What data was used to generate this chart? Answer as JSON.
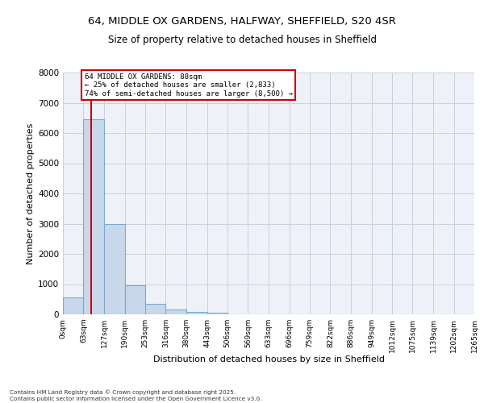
{
  "title_line1": "64, MIDDLE OX GARDENS, HALFWAY, SHEFFIELD, S20 4SR",
  "title_line2": "Size of property relative to detached houses in Sheffield",
  "xlabel": "Distribution of detached houses by size in Sheffield",
  "ylabel": "Number of detached properties",
  "bar_color": "#c8d8ea",
  "bar_edge_color": "#7aaac8",
  "grid_color": "#c8d0dc",
  "background_color": "#eef2f8",
  "bins": [
    0,
    63,
    127,
    190,
    253,
    316,
    380,
    443,
    506,
    569,
    633,
    696,
    759,
    822,
    886,
    949,
    1012,
    1075,
    1139,
    1202,
    1265
  ],
  "bin_labels": [
    "0sqm",
    "63sqm",
    "127sqm",
    "190sqm",
    "253sqm",
    "316sqm",
    "380sqm",
    "443sqm",
    "506sqm",
    "569sqm",
    "633sqm",
    "696sqm",
    "759sqm",
    "822sqm",
    "886sqm",
    "949sqm",
    "1012sqm",
    "1075sqm",
    "1139sqm",
    "1202sqm",
    "1265sqm"
  ],
  "values": [
    550,
    6450,
    2980,
    960,
    350,
    165,
    90,
    55,
    0,
    0,
    0,
    0,
    0,
    0,
    0,
    0,
    0,
    0,
    0,
    0
  ],
  "property_size": 88,
  "annotation_line1": "64 MIDDLE OX GARDENS: 88sqm",
  "annotation_line2": "← 25% of detached houses are smaller (2,833)",
  "annotation_line3": "74% of semi-detached houses are larger (8,500) →",
  "red_line_color": "#cc0000",
  "annotation_box_color": "#ffffff",
  "annotation_box_edge": "#cc0000",
  "ylim": [
    0,
    8000
  ],
  "yticks": [
    0,
    1000,
    2000,
    3000,
    4000,
    5000,
    6000,
    7000,
    8000
  ],
  "footnote_line1": "Contains HM Land Registry data © Crown copyright and database right 2025.",
  "footnote_line2": "Contains public sector information licensed under the Open Government Licence v3.0."
}
